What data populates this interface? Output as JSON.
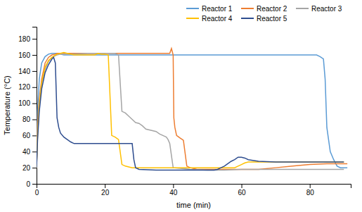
{
  "chart_data": {
    "type": "line",
    "xlabel": "time (min)",
    "ylabel": "Temperature (°C)",
    "xlim": [
      0,
      92
    ],
    "ylim": [
      0,
      195
    ],
    "xticks": [
      0,
      20,
      40,
      60,
      80
    ],
    "yticks": [
      0,
      20,
      40,
      60,
      80,
      100,
      120,
      140,
      160,
      180
    ],
    "grid": false,
    "legend": "upper right",
    "series": [
      {
        "name": "Reactor 1",
        "color": "#5B9BD5",
        "x": [
          0,
          0.3,
          0.8,
          1.5,
          2.5,
          3.5,
          4.5,
          5.5,
          6,
          7,
          8,
          10,
          15,
          20,
          25,
          30,
          35,
          40,
          45,
          50,
          55,
          60,
          65,
          70,
          75,
          80,
          82,
          83,
          84,
          84.5,
          85,
          85.5,
          86,
          87,
          88,
          89,
          90,
          91
        ],
        "values": [
          20,
          90,
          130,
          150,
          158,
          161,
          162,
          162,
          162,
          161,
          160,
          160,
          160,
          160,
          160,
          160,
          160,
          160,
          160,
          160,
          160,
          160,
          160,
          160,
          160,
          160,
          160,
          158,
          155,
          130,
          70,
          55,
          40,
          30,
          22,
          20,
          20,
          20
        ]
      },
      {
        "name": "Reactor 2",
        "color": "#ED7D31",
        "x": [
          0,
          0.3,
          0.8,
          1.5,
          2.5,
          3.5,
          4.5,
          5.5,
          6,
          7,
          8,
          10,
          15,
          20,
          25,
          30,
          35,
          38,
          39,
          39.5,
          40,
          40.2,
          40.5,
          41,
          42,
          43,
          44,
          45,
          47,
          50,
          55,
          60,
          65,
          70,
          75,
          80,
          85,
          90,
          91
        ],
        "values": [
          20,
          75,
          105,
          130,
          150,
          157,
          160,
          161,
          162,
          162,
          162,
          162,
          162,
          162,
          162,
          162,
          162,
          162,
          162,
          168,
          160,
          82,
          70,
          60,
          57,
          54,
          22,
          20,
          18,
          18,
          18,
          18,
          18,
          20,
          22,
          24,
          25,
          25,
          25
        ]
      },
      {
        "name": "Reactor 3",
        "color": "#A5A5A5",
        "x": [
          0,
          0.3,
          0.8,
          1.5,
          2.5,
          3.5,
          4.5,
          5.5,
          6,
          7,
          8,
          10,
          15,
          20,
          23,
          24,
          25,
          26,
          27,
          28,
          29,
          30,
          31,
          32,
          35,
          36,
          37,
          38,
          38.5,
          39,
          40,
          45,
          50,
          55,
          60,
          65,
          70,
          75,
          80,
          85,
          90
        ],
        "values": [
          20,
          65,
          100,
          125,
          142,
          152,
          157,
          159,
          160,
          161,
          161,
          161,
          162,
          162,
          162,
          160,
          90,
          88,
          84,
          80,
          76,
          75,
          72,
          68,
          65,
          62,
          60,
          58,
          55,
          50,
          20,
          18,
          17,
          17,
          18,
          18,
          18,
          18,
          18,
          18,
          18
        ]
      },
      {
        "name": "Reactor 4",
        "color": "#FFC000",
        "x": [
          0,
          0.3,
          0.8,
          1.5,
          2.5,
          3.5,
          4.5,
          5.5,
          6,
          7,
          8,
          9,
          10,
          11,
          12,
          13,
          14,
          15,
          16,
          17,
          18,
          19,
          20,
          21,
          22,
          23,
          24,
          25,
          26,
          27,
          28,
          30,
          35,
          40,
          45,
          50,
          55,
          58,
          59,
          60,
          61,
          62,
          65,
          70,
          75,
          80,
          85,
          90
        ],
        "values": [
          20,
          60,
          98,
          125,
          145,
          153,
          157,
          160,
          161,
          162,
          163,
          162,
          161,
          160,
          160,
          160,
          160,
          160,
          160,
          160,
          162,
          161,
          161,
          160,
          60,
          58,
          55,
          24,
          22,
          21,
          20,
          20,
          20,
          20,
          20,
          20,
          20,
          20,
          22,
          24,
          26,
          27,
          27,
          27,
          27,
          27,
          27,
          27
        ]
      },
      {
        "name": "Reactor 5",
        "color": "#2E4D8F",
        "x": [
          0,
          0.3,
          0.8,
          1.5,
          2.5,
          3.5,
          4.5,
          5,
          5.5,
          6,
          6.5,
          7,
          8,
          9,
          10,
          11,
          12,
          13,
          14,
          15,
          20,
          25,
          28,
          28.5,
          29,
          30,
          35,
          40,
          45,
          50,
          52,
          53,
          54,
          55,
          56,
          57,
          58,
          59,
          60,
          61,
          62,
          65,
          70,
          75,
          80,
          85,
          90
        ],
        "values": [
          20,
          55,
          90,
          118,
          138,
          148,
          155,
          157,
          150,
          82,
          70,
          63,
          58,
          55,
          52,
          50,
          50,
          50,
          50,
          50,
          50,
          50,
          50,
          30,
          20,
          18,
          17,
          17,
          17,
          17,
          17,
          18,
          20,
          22,
          25,
          28,
          30,
          33,
          33,
          32,
          30,
          28,
          27,
          27,
          27,
          27,
          27
        ]
      }
    ]
  }
}
